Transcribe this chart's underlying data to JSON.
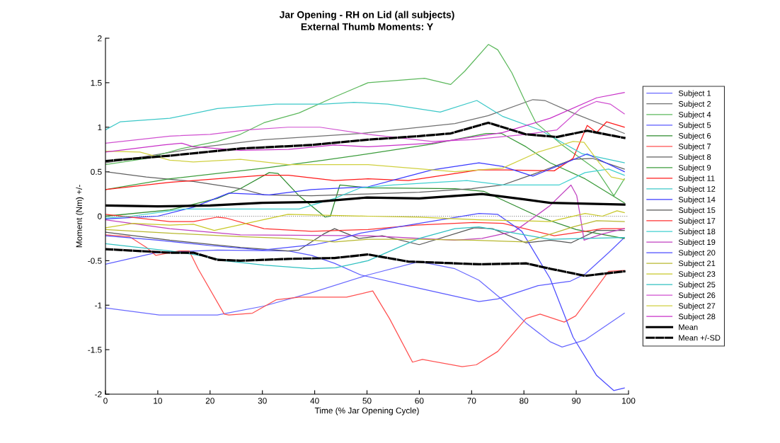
{
  "chart_data": {
    "type": "line",
    "title": "Jar Opening - RH on Lid (all subjects)",
    "subtitle": "External Thumb Moments: Y",
    "xlabel": "Time (% Jar Opening Cycle)",
    "ylabel": "Moment (Nm) +/-",
    "xlim": [
      0,
      100
    ],
    "xticks": [
      0,
      10,
      20,
      30,
      40,
      50,
      60,
      70,
      80,
      90,
      100
    ],
    "ylim": [
      -2,
      2
    ],
    "yticks": [
      -2,
      -1.5,
      -1,
      -0.5,
      0,
      0.5,
      1,
      1.5,
      2
    ],
    "grid": false,
    "legend": "right",
    "marker": "none",
    "line_style": "solid",
    "ref_lines": [
      {
        "axis": "y",
        "value": 0,
        "color": "#808080",
        "line_style": "dotted"
      }
    ],
    "series": [
      {
        "name": "Subject 1",
        "color": "#6a6aff",
        "x": [
          0,
          10.3,
          21.4,
          30.3,
          39.4,
          50.2,
          60,
          66.8,
          71.4,
          75.9,
          80.4,
          85,
          87.3,
          91.7,
          99.2
        ],
        "values": [
          -1.03,
          -1.11,
          -1.11,
          -1.01,
          -0.86,
          -0.66,
          -0.51,
          -0.59,
          -0.72,
          -0.94,
          -1.2,
          -1.41,
          -1.47,
          -1.39,
          -1.09
        ]
      },
      {
        "name": "Subject 2",
        "color": "#707070",
        "x": [
          0,
          19,
          30.3,
          48.8,
          66.8,
          73.2,
          81.7,
          84,
          89.4,
          99.2
        ],
        "values": [
          0.6,
          0.78,
          0.86,
          0.93,
          1.04,
          1.13,
          1.31,
          1.3,
          1.16,
          0.93
        ]
      },
      {
        "name": "Subject 4",
        "color": "#5cb85c",
        "x": [
          0,
          7.8,
          14.6,
          21.4,
          25.8,
          30.3,
          37,
          43.8,
          50.2,
          61,
          66,
          68.7,
          73.2,
          75,
          77.7,
          80,
          82.3,
          87.1,
          93.9,
          97.2,
          99.2
        ],
        "values": [
          0.58,
          0.65,
          0.76,
          0.84,
          0.92,
          1.05,
          1.16,
          1.34,
          1.5,
          1.55,
          1.48,
          1.63,
          1.93,
          1.87,
          1.61,
          1.32,
          1.05,
          0.81,
          0.52,
          0.23,
          0.42
        ]
      },
      {
        "name": "Subject 5",
        "color": "#5a5aff",
        "x": [
          0,
          9.6,
          21.4,
          35,
          39.4,
          43.8,
          48.8,
          60,
          71.4,
          75,
          82.7,
          88.9,
          91.7,
          96.2,
          99.2
        ],
        "values": [
          -0.54,
          -0.41,
          -0.38,
          -0.39,
          -0.44,
          -0.53,
          -0.66,
          -0.81,
          -0.96,
          -0.93,
          -0.78,
          -0.73,
          -0.65,
          -0.41,
          -0.24
        ]
      },
      {
        "name": "Subject 6",
        "color": "#2e8b2e",
        "x": [
          0,
          12.3,
          21.4,
          25.8,
          31.3,
          33,
          37,
          42,
          43,
          44.8,
          50.2,
          66.8,
          72.3,
          83,
          90,
          99.2
        ],
        "values": [
          0.0,
          0.07,
          0.2,
          0.31,
          0.49,
          0.48,
          0.23,
          -0.01,
          0.0,
          0.35,
          0.32,
          0.31,
          0.28,
          -0.01,
          -0.15,
          -0.25
        ]
      },
      {
        "name": "Subject 7",
        "color": "#ff5050",
        "x": [
          0,
          4.6,
          7.8,
          9.6,
          14.1,
          16,
          17.7,
          22.7,
          23.6,
          28.1,
          32.6,
          37.1,
          46.1,
          51.1,
          54.3,
          58.7,
          60.6,
          68.2,
          70.9,
          75,
          80.4,
          83.1,
          87.7,
          89.9,
          96.2,
          99.2
        ],
        "values": [
          -0.21,
          -0.23,
          -0.35,
          -0.44,
          -0.39,
          -0.39,
          -0.59,
          -1.1,
          -1.11,
          -1.09,
          -0.94,
          -0.91,
          -0.91,
          -0.84,
          -1.15,
          -1.64,
          -1.61,
          -1.69,
          -1.67,
          -1.52,
          -1.15,
          -1.1,
          -1.19,
          -1.12,
          -0.62,
          -0.61
        ]
      },
      {
        "name": "Subject 8",
        "color": "#606060",
        "x": [
          0,
          7.8,
          16.8,
          25.8,
          30.3,
          39.4,
          50.2,
          60,
          70,
          75.9,
          82.7,
          89.4,
          93.1,
          99.2
        ],
        "values": [
          0.5,
          0.44,
          0.39,
          0.31,
          0.24,
          0.23,
          0.25,
          0.27,
          0.31,
          0.35,
          0.49,
          0.64,
          0.65,
          0.53
        ]
      },
      {
        "name": "Subject 9",
        "color": "#3c9c3c",
        "x": [
          0,
          12.3,
          30.3,
          41.7,
          50.2,
          62.4,
          72.8,
          75.7,
          80.4,
          85,
          91.7,
          99.2
        ],
        "values": [
          0.3,
          0.42,
          0.54,
          0.63,
          0.7,
          0.81,
          0.93,
          0.93,
          0.78,
          0.6,
          0.42,
          0.15
        ]
      },
      {
        "name": "Subject 11",
        "color": "#ff1a1a",
        "x": [
          0,
          12.3,
          30.3,
          35,
          43.8,
          50.2,
          57.9,
          71.4,
          76.8,
          85.8,
          89.4,
          92.1,
          93.9,
          95.8,
          99.2
        ],
        "values": [
          0.3,
          0.38,
          0.46,
          0.46,
          0.4,
          0.42,
          0.4,
          0.52,
          0.52,
          0.51,
          0.65,
          1.02,
          0.94,
          1.06,
          1.0
        ]
      },
      {
        "name": "Subject 12",
        "color": "#3cc8c8",
        "x": [
          0,
          2.8,
          12.3,
          21.4,
          32.6,
          41.7,
          47.5,
          54,
          64,
          71,
          76,
          83,
          91.2,
          99.2
        ],
        "values": [
          0.97,
          1.06,
          1.1,
          1.21,
          1.26,
          1.26,
          1.28,
          1.26,
          1.17,
          1.3,
          1.12,
          0.97,
          0.7,
          0.6
        ]
      },
      {
        "name": "Subject 14",
        "color": "#3a3aff",
        "x": [
          0,
          10,
          16.8,
          23.6,
          31.3,
          39.4,
          50.2,
          62.4,
          71.4,
          75.9,
          81.7,
          87.1,
          92.1,
          99.2
        ],
        "values": [
          -0.03,
          0.0,
          0.1,
          0.26,
          0.24,
          0.3,
          0.33,
          0.52,
          0.6,
          0.56,
          0.45,
          0.58,
          0.7,
          0.5
        ]
      },
      {
        "name": "Subject 15",
        "color": "#555555",
        "x": [
          0,
          12.3,
          25.8,
          34.9,
          37,
          41.7,
          43.8,
          48.4,
          52.9,
          60,
          70.5,
          74,
          80.4,
          85,
          89,
          93.9,
          99.2
        ],
        "values": [
          -0.18,
          -0.27,
          -0.35,
          -0.39,
          -0.38,
          -0.2,
          -0.14,
          -0.25,
          -0.22,
          -0.32,
          -0.13,
          -0.14,
          -0.3,
          -0.27,
          -0.3,
          -0.16,
          -0.16
        ]
      },
      {
        "name": "Subject 17",
        "color": "#ff3030",
        "x": [
          0,
          12.3,
          16.8,
          21.4,
          23,
          30.3,
          39.4,
          50.2,
          59.3,
          70.5,
          76,
          85.8,
          91.7,
          95,
          99.2
        ],
        "values": [
          0.02,
          -0.06,
          -0.06,
          -0.01,
          -0.02,
          -0.14,
          -0.17,
          -0.15,
          -0.1,
          -0.07,
          -0.08,
          -0.22,
          -0.17,
          -0.14,
          -0.14
        ]
      },
      {
        "name": "Subject 18",
        "color": "#40d0d0",
        "x": [
          0,
          5,
          15,
          25,
          37,
          43.8,
          48.8,
          55,
          69.1,
          76,
          86.7,
          91.7,
          96.2,
          99.2
        ],
        "values": [
          -0.02,
          0.0,
          0.08,
          0.08,
          0.08,
          0.2,
          0.32,
          0.35,
          0.4,
          0.35,
          0.35,
          0.49,
          0.53,
          0.46
        ]
      },
      {
        "name": "Subject 19",
        "color": "#c040c0",
        "x": [
          0,
          12.3,
          25.8,
          50.2,
          66.8,
          72,
          78.2,
          82.7,
          85,
          89,
          90.1,
          90.8,
          91.5,
          95,
          99.2
        ],
        "values": [
          -0.04,
          -0.14,
          -0.21,
          -0.22,
          -0.27,
          -0.25,
          -0.17,
          0.02,
          0.12,
          0.35,
          0.23,
          -0.01,
          -0.27,
          -0.2,
          -0.14
        ]
      },
      {
        "name": "Subject 20",
        "color": "#4c4cff",
        "x": [
          0,
          10,
          20,
          30,
          40,
          44,
          48.8,
          52.9,
          71.4,
          75,
          79.6,
          85,
          89.4,
          93.9,
          97.2,
          99.2
        ],
        "values": [
          -0.22,
          -0.27,
          -0.33,
          -0.38,
          -0.32,
          -0.27,
          -0.19,
          -0.15,
          0.03,
          0.02,
          -0.17,
          -0.7,
          -1.36,
          -1.79,
          -1.96,
          -1.93
        ]
      },
      {
        "name": "Subject 21",
        "color": "#b8b830",
        "x": [
          0,
          12,
          25.8,
          35,
          43.8,
          50.2,
          60,
          70,
          80.4,
          89.4,
          93.9,
          99.2
        ],
        "values": [
          -0.15,
          -0.19,
          -0.23,
          -0.25,
          -0.29,
          -0.26,
          -0.26,
          -0.27,
          -0.29,
          -0.12,
          -0.05,
          -0.06
        ]
      },
      {
        "name": "Subject 23",
        "color": "#c8c828",
        "x": [
          0,
          5.3,
          12.3,
          16.8,
          20.8,
          27,
          34.9,
          50.2,
          60,
          71.4,
          85,
          91.7,
          95,
          97.8,
          99.2
        ],
        "values": [
          -0.13,
          -0.08,
          -0.1,
          -0.09,
          -0.16,
          -0.08,
          0.02,
          0.0,
          -0.01,
          -0.04,
          -0.06,
          0.03,
          0.0,
          0.06,
          0.04
        ]
      },
      {
        "name": "Subject 25",
        "color": "#30c0c0",
        "x": [
          0,
          12.3,
          19,
          22.7,
          30.3,
          39.4,
          44,
          50.2,
          53.3,
          60,
          66.8,
          71.4,
          78.2,
          85,
          92,
          99.2
        ],
        "values": [
          -0.31,
          -0.39,
          -0.45,
          -0.5,
          -0.55,
          -0.59,
          -0.58,
          -0.5,
          -0.42,
          -0.25,
          -0.14,
          -0.12,
          -0.19,
          -0.26,
          -0.25,
          -0.24
        ]
      },
      {
        "name": "Subject 26",
        "color": "#d050d0",
        "x": [
          0,
          12.3,
          20,
          27,
          34.9,
          41,
          50.2,
          62.4,
          70,
          80.4,
          86.3,
          90.8,
          93.9,
          96.5,
          99.2
        ],
        "values": [
          0.82,
          0.9,
          0.92,
          0.97,
          1.0,
          1.0,
          0.92,
          0.84,
          0.86,
          0.92,
          0.97,
          1.21,
          1.29,
          1.26,
          1.15
        ]
      },
      {
        "name": "Subject 27",
        "color": "#d0d040",
        "x": [
          0,
          6.6,
          12.3,
          16.8,
          25.8,
          34.9,
          50.2,
          66.8,
          75.9,
          82.7,
          89.4,
          91.5,
          94.4,
          96.7,
          99.2
        ],
        "values": [
          0.73,
          0.72,
          0.63,
          0.61,
          0.64,
          0.58,
          0.58,
          0.5,
          0.54,
          0.72,
          0.84,
          0.83,
          0.6,
          0.44,
          0.41
        ]
      },
      {
        "name": "Subject 28",
        "color": "#c830c8",
        "x": [
          0,
          11,
          14.6,
          16.8,
          25.8,
          35,
          43.8,
          50.2,
          62.4,
          75.9,
          85,
          93.9,
          99.2
        ],
        "values": [
          0.72,
          0.8,
          0.82,
          0.78,
          0.74,
          0.75,
          0.8,
          0.78,
          0.82,
          0.94,
          1.1,
          1.33,
          1.39
        ]
      },
      {
        "name": "Mean",
        "color": "#000000",
        "x": [
          0,
          10,
          20,
          30,
          40,
          50,
          60,
          72,
          80,
          85,
          99.2
        ],
        "values": [
          0.12,
          0.11,
          0.12,
          0.15,
          0.16,
          0.21,
          0.2,
          0.25,
          0.19,
          0.15,
          0.13
        ]
      },
      {
        "name": "Mean +/-SD",
        "color": "#000000",
        "line_style": "dashed",
        "x": [
          0,
          12.3,
          25.8,
          39.4,
          50.2,
          60,
          66,
          73.2,
          80.4,
          86.3,
          92.1,
          99.2
        ],
        "values": [
          0.62,
          0.68,
          0.76,
          0.8,
          0.86,
          0.9,
          0.93,
          1.05,
          0.92,
          0.89,
          0.96,
          0.88
        ]
      },
      {
        "color": "#000000",
        "line_style": "dashed",
        "x": [
          0,
          12.3,
          16.8,
          21.4,
          25.8,
          34.9,
          43.8,
          50.2,
          57.9,
          71.4,
          80.4,
          85,
          91.7,
          99.2
        ],
        "values": [
          -0.37,
          -0.41,
          -0.41,
          -0.49,
          -0.5,
          -0.48,
          -0.47,
          -0.43,
          -0.51,
          -0.54,
          -0.53,
          -0.59,
          -0.67,
          -0.62
        ]
      }
    ]
  }
}
